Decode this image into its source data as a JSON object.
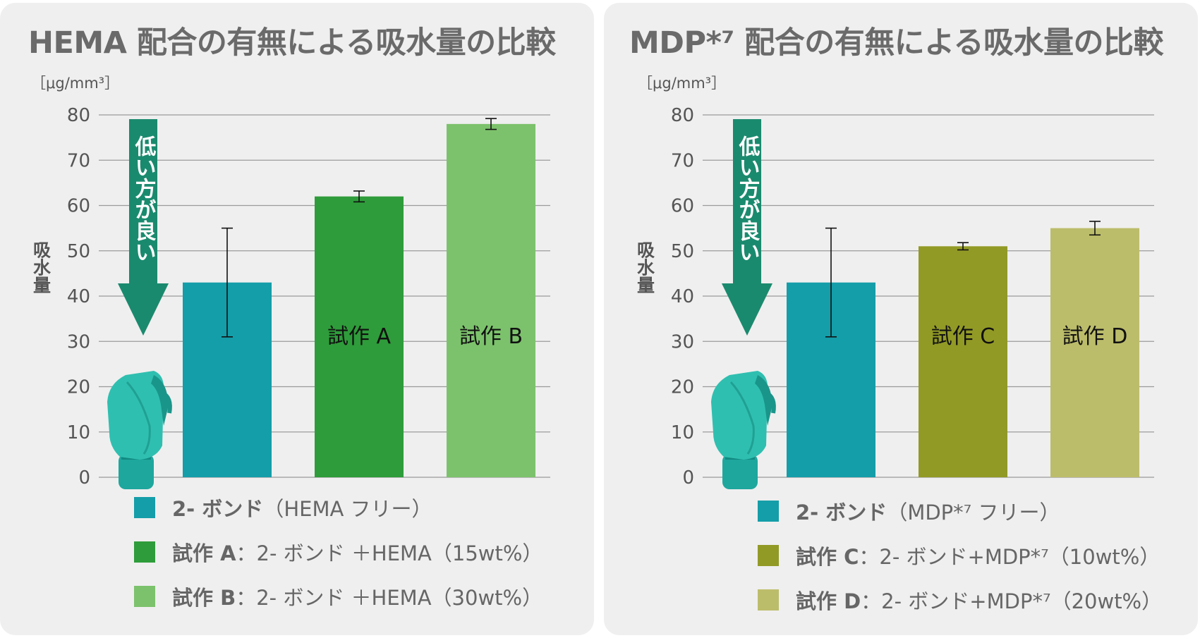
{
  "arrow_label": "低い方が良い",
  "chart_data": [
    {
      "type": "bar",
      "title": "HEMA 配合の有無による吸水量の比較",
      "unit": "［μg/mm³］",
      "ylabel": "吸水量",
      "ylim": [
        0,
        80
      ],
      "yticks": [
        0,
        10,
        20,
        30,
        40,
        50,
        60,
        70,
        80
      ],
      "grid": true,
      "categories": [
        "2- ボンド",
        "試作 A",
        "試作 B"
      ],
      "bar_labels": [
        "",
        "試作 A",
        "試作 B"
      ],
      "values": [
        43,
        62,
        78
      ],
      "errors": [
        12,
        1.2,
        1.2
      ],
      "colors": [
        "#149ea9",
        "#2e9c3a",
        "#7cc26c"
      ],
      "legend": [
        {
          "strong": "2- ボンド",
          "rest": "（HEMA フリー）"
        },
        {
          "strong": "試作 A",
          "rest": "：2- ボンド ＋HEMA（15wt%）"
        },
        {
          "strong": "試作 B",
          "rest": "：2- ボンド ＋HEMA（30wt%）"
        }
      ]
    },
    {
      "type": "bar",
      "title": "MDP*⁷ 配合の有無による吸水量の比較",
      "unit": "［μg/mm³］",
      "ylabel": "吸水量",
      "ylim": [
        0,
        80
      ],
      "yticks": [
        0,
        10,
        20,
        30,
        40,
        50,
        60,
        70,
        80
      ],
      "grid": true,
      "categories": [
        "2- ボンド",
        "試作 C",
        "試作 D"
      ],
      "bar_labels": [
        "",
        "試作 C",
        "試作 D"
      ],
      "values": [
        43,
        51,
        55
      ],
      "errors": [
        12,
        0.8,
        1.5
      ],
      "colors": [
        "#149ea9",
        "#929a26",
        "#bcbd6a"
      ],
      "legend": [
        {
          "strong": "2- ボンド",
          "rest": "（MDP*⁷ フリー）"
        },
        {
          "strong": "試作 C",
          "rest": "：2- ボンド+MDP*⁷（10wt%）"
        },
        {
          "strong": "試作 D",
          "rest": "：2- ボンド+MDP*⁷（20wt%）"
        }
      ]
    }
  ]
}
